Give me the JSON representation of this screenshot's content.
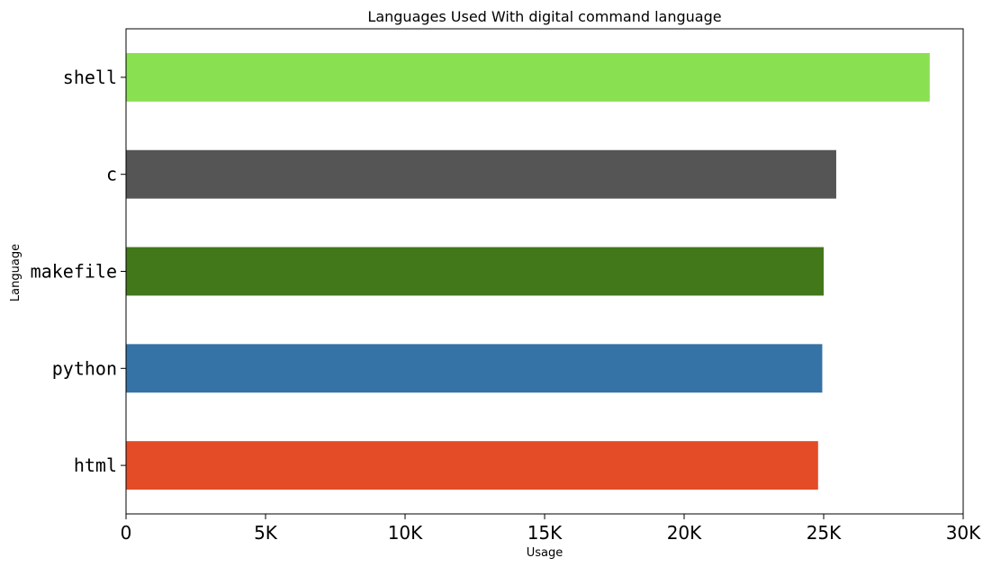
{
  "chart_data": {
    "type": "bar",
    "orientation": "horizontal",
    "title": "Languages Used With digital command language",
    "xlabel": "Usage",
    "ylabel": "Language",
    "categories": [
      "html",
      "python",
      "makefile",
      "c",
      "shell"
    ],
    "values": [
      24800,
      24950,
      25000,
      25450,
      28800
    ],
    "colors": [
      "#e34c26",
      "#3572a5",
      "#427819",
      "#555555",
      "#89e051"
    ],
    "xlim": [
      0,
      30000
    ],
    "xticks": [
      0,
      5000,
      10000,
      15000,
      20000,
      25000,
      30000
    ],
    "xtick_labels": [
      "0",
      "5K",
      "10K",
      "15K",
      "20K",
      "25K",
      "30K"
    ],
    "grid": false,
    "legend": "none"
  }
}
